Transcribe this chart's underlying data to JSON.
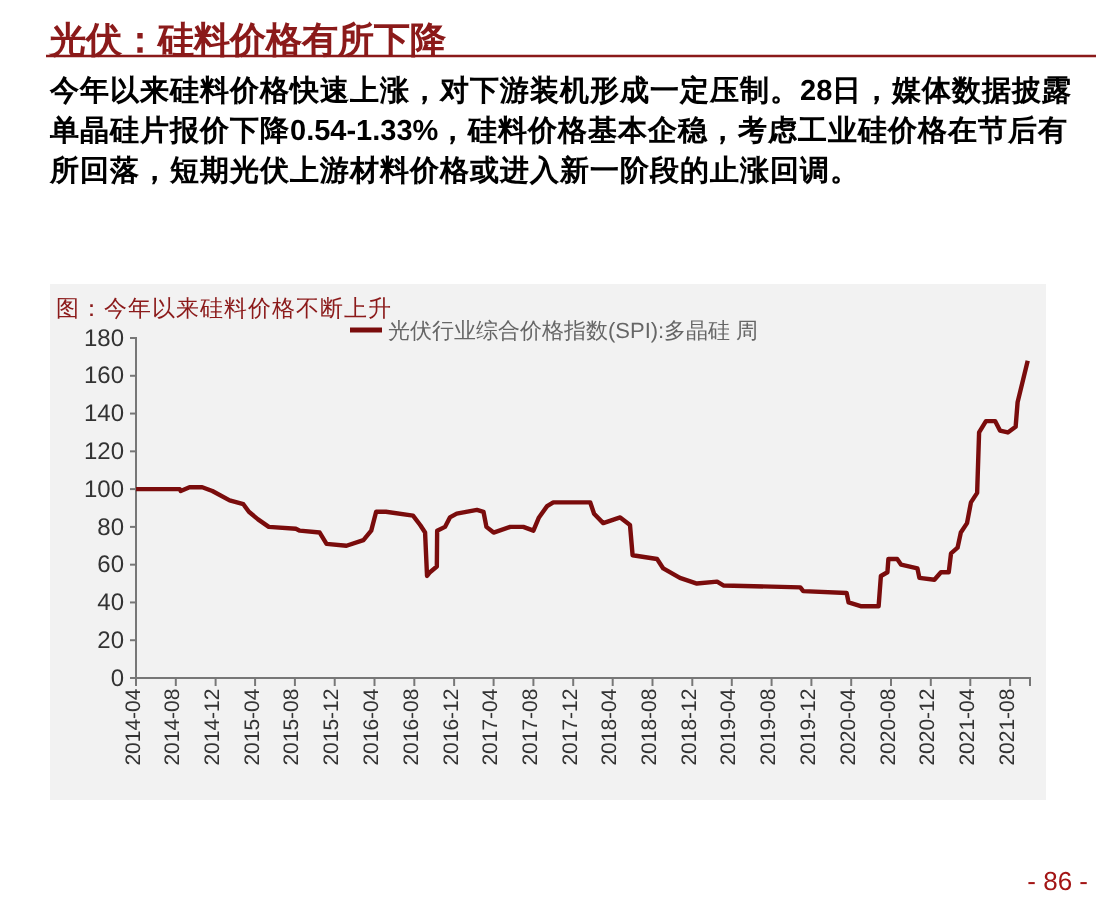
{
  "chart_data": {
    "type": "line",
    "title": "光伏：硅料价格有所下降",
    "subtitle": "今年以来硅料价格快速上涨，对下游装机形成一定压制。28日，媒体数据披露单晶硅片报价下降0.54-1.33%，硅料价格基本企稳，考虑工业硅价格在节后有所回落，短期光伏上游材料价格或进入新一阶段的止涨回调。",
    "annotations": [
      "图：今年以来硅料价格不断上升",
      "- 86 -"
    ],
    "x": [
      "2014-04-01",
      "2014-08-13",
      "2014-08-16",
      "2014-09-12",
      "2014-10-21",
      "2014-11-21",
      "2015-01-13",
      "2015-02-24",
      "2015-03-13",
      "2015-04-10",
      "2015-05-13",
      "2015-08-04",
      "2015-08-16",
      "2015-10-16",
      "2015-11-06",
      "2016-01-06",
      "2016-02-27",
      "2016-03-22",
      "2016-04-06",
      "2016-05-06",
      "2016-07-28",
      "2016-08-19",
      "2016-09-03",
      "2016-09-09",
      "2016-09-18",
      "2016-10-09",
      "2016-10-10",
      "2016-11-03",
      "2016-11-18",
      "2016-12-09",
      "2017-02-09",
      "2017-03-01",
      "2017-03-10",
      "2017-04-01",
      "2017-05-22",
      "2017-07-01",
      "2017-08-01",
      "2017-08-18",
      "2017-09-12",
      "2017-10-01",
      "2018-01-22",
      "2018-02-03",
      "2018-03-03",
      "2018-04-24",
      "2018-05-24",
      "2018-06-01",
      "2018-08-15",
      "2018-09-03",
      "2018-10-24",
      "2018-12-15",
      "2019-02-15",
      "2019-03-06",
      "2019-10-28",
      "2019-11-06",
      "2020-03-18",
      "2020-03-24",
      "2020-04-30",
      "2020-06-24",
      "2020-07-01",
      "2020-07-21",
      "2020-07-24",
      "2020-08-20",
      "2020-09-01",
      "2020-10-21",
      "2020-10-27",
      "2020-12-12",
      "2021-01-01",
      "2021-01-25",
      "2021-02-01",
      "2021-02-21",
      "2021-03-03",
      "2021-03-22",
      "2021-04-03",
      "2021-04-22",
      "2021-04-28",
      "2021-05-19",
      "2021-06-16",
      "2021-07-01",
      "2021-07-25",
      "2021-08-18",
      "2021-08-24",
      "2021-09-24"
    ],
    "series": [
      {
        "name": "光伏行业综合价格指数(SPI):多晶硅 周",
        "color": "#7a0c0c",
        "values": [
          100,
          100,
          99,
          101,
          101,
          99,
          94,
          92,
          88,
          84,
          80,
          79,
          78,
          77,
          71,
          70,
          73,
          78,
          88,
          88,
          86,
          81,
          77,
          54,
          56,
          59,
          78,
          80,
          85,
          87,
          89,
          88,
          80,
          77,
          80,
          80,
          78,
          85,
          91,
          93,
          93,
          87,
          82,
          85,
          81,
          65,
          63,
          58,
          53,
          50,
          51,
          49,
          48,
          46,
          45,
          40,
          38,
          38,
          54,
          56,
          63,
          63,
          60,
          58,
          53,
          52,
          56,
          56,
          66,
          69,
          77,
          82,
          93,
          98,
          130,
          136,
          136,
          131,
          130,
          133,
          146,
          168
        ]
      }
    ],
    "xlim": [
      "2014-04-01",
      "2021-10-01"
    ],
    "xticks": [
      "2014-04",
      "2014-08",
      "2014-12",
      "2015-04",
      "2015-08",
      "2015-12",
      "2016-04",
      "2016-08",
      "2016-12",
      "2017-04",
      "2017-08",
      "2017-12",
      "2018-04",
      "2018-08",
      "2018-12",
      "2019-04",
      "2019-08",
      "2019-12",
      "2020-04",
      "2020-08",
      "2020-12",
      "2021-04",
      "2021-08"
    ],
    "ylim": [
      0,
      180
    ],
    "yticks": [
      0,
      20,
      40,
      60,
      80,
      100,
      120,
      140,
      160,
      180
    ],
    "grid": false,
    "legend": "top",
    "marker": "none",
    "line_style": "solid"
  }
}
